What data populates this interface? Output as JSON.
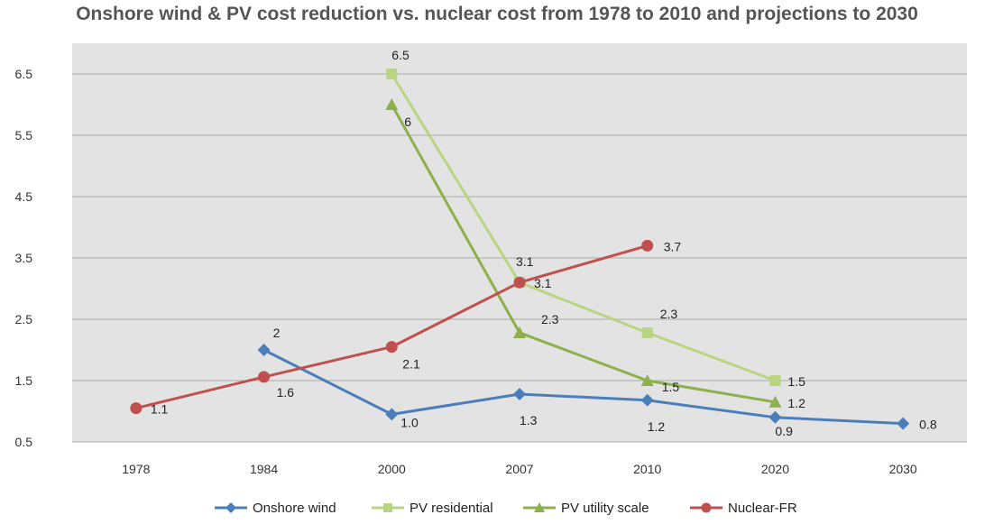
{
  "chart_data": {
    "type": "line",
    "title": "Onshore wind & PV cost reduction vs. nuclear cost from 1978 to 2010 and projections to 2030",
    "xlabel": "",
    "ylabel": "",
    "categories": [
      "1978",
      "1984",
      "2000",
      "2007",
      "2010",
      "2020",
      "2030"
    ],
    "ylim": [
      0.5,
      7.0
    ],
    "yticks": [
      0.5,
      1.5,
      2.5,
      3.5,
      4.5,
      5.5,
      6.5
    ],
    "ytick_labels": [
      "0.5",
      "1.5",
      "2.5",
      "3.5",
      "4.5",
      "5.5",
      "6.5"
    ],
    "grid": true,
    "legend_position": "bottom",
    "series": [
      {
        "name": "Onshore wind",
        "color": "#4a7ebb",
        "marker": "diamond",
        "values": [
          null,
          2.0,
          0.95,
          1.28,
          1.18,
          0.9,
          0.8
        ],
        "labels": [
          null,
          "2",
          "1.0",
          "1.3",
          "1.2",
          "0.9",
          "0.8"
        ]
      },
      {
        "name": "PV residential",
        "color": "#b9d582",
        "marker": "square",
        "values": [
          null,
          null,
          6.5,
          3.1,
          2.28,
          1.5,
          null
        ],
        "labels": [
          null,
          null,
          "6.5",
          "3.1",
          "2.3",
          "1.5",
          null
        ]
      },
      {
        "name": "PV utility scale",
        "color": "#8db04b",
        "marker": "triangle",
        "values": [
          null,
          null,
          6.0,
          2.28,
          1.5,
          1.15,
          null
        ],
        "labels": [
          null,
          null,
          "6",
          "2.3",
          "1.5",
          "1.2",
          null
        ]
      },
      {
        "name": "Nuclear-FR",
        "color": "#c0504d",
        "marker": "circle",
        "values": [
          1.05,
          1.56,
          2.05,
          3.1,
          3.7,
          null,
          null
        ],
        "labels": [
          "1.1",
          "1.6",
          "2.1",
          "3.1",
          "3.7",
          null,
          null
        ]
      }
    ]
  }
}
